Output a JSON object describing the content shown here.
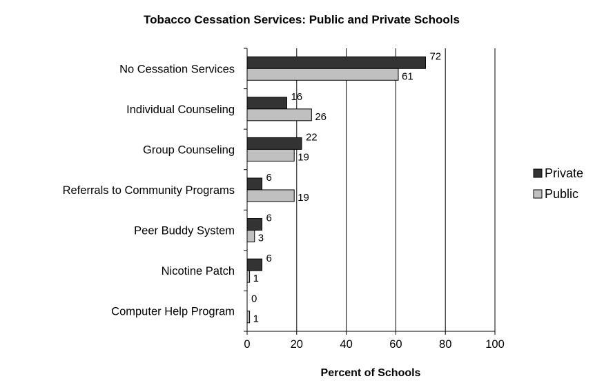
{
  "chart_data": {
    "type": "bar",
    "orientation": "horizontal",
    "title": "Tobacco Cessation Services: Public and Private Schools",
    "xlabel": "Percent of Schools",
    "ylabel": "",
    "xlim": [
      0,
      100
    ],
    "x_ticks": [
      0,
      20,
      40,
      60,
      80,
      100
    ],
    "grid": "vertical",
    "legend_position": "right",
    "categories": [
      "No Cessation Services",
      "Individual Counseling",
      "Group Counseling",
      "Referrals to Community Programs",
      "Peer Buddy System",
      "Nicotine Patch",
      "Computer Help Program"
    ],
    "series": [
      {
        "name": "Private",
        "color": "#333333",
        "values": [
          72,
          16,
          22,
          6,
          6,
          6,
          0
        ]
      },
      {
        "name": "Public",
        "color": "#c0c0c0",
        "values": [
          61,
          26,
          19,
          19,
          3,
          1,
          1
        ]
      }
    ]
  }
}
